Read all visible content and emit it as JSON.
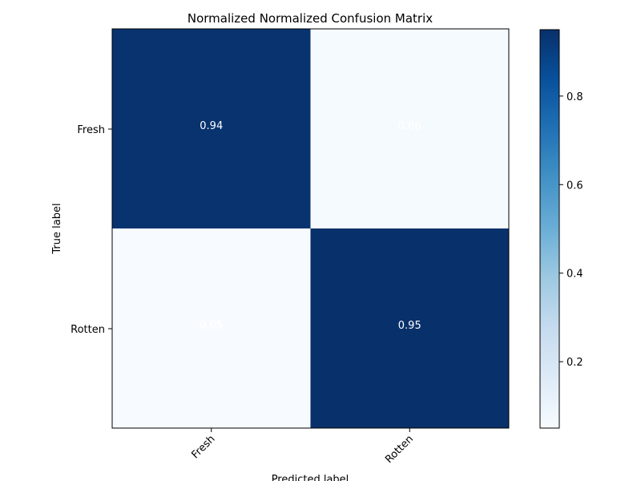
{
  "chart_data": {
    "type": "heatmap",
    "title": "Normalized Normalized Confusion Matrix",
    "xlabel": "Predicted label",
    "ylabel": "True label",
    "x_categories": [
      "Fresh",
      "Rotten"
    ],
    "y_categories": [
      "Fresh",
      "Rotten"
    ],
    "values": [
      [
        0.94,
        0.06
      ],
      [
        0.05,
        0.95
      ]
    ],
    "cell_labels": [
      [
        "0.94",
        "0.06"
      ],
      [
        "0.05",
        "0.95"
      ]
    ],
    "colormap": "Blues",
    "color_low": "#f7fbff",
    "color_high": "#08306b",
    "text_color": "#ffffff",
    "colorbar": {
      "range": [
        0.05,
        0.95
      ],
      "ticks": [
        0.2,
        0.4,
        0.6,
        0.8
      ],
      "tick_labels": [
        "0.2",
        "0.4",
        "0.6",
        "0.8"
      ]
    },
    "grid": false
  }
}
